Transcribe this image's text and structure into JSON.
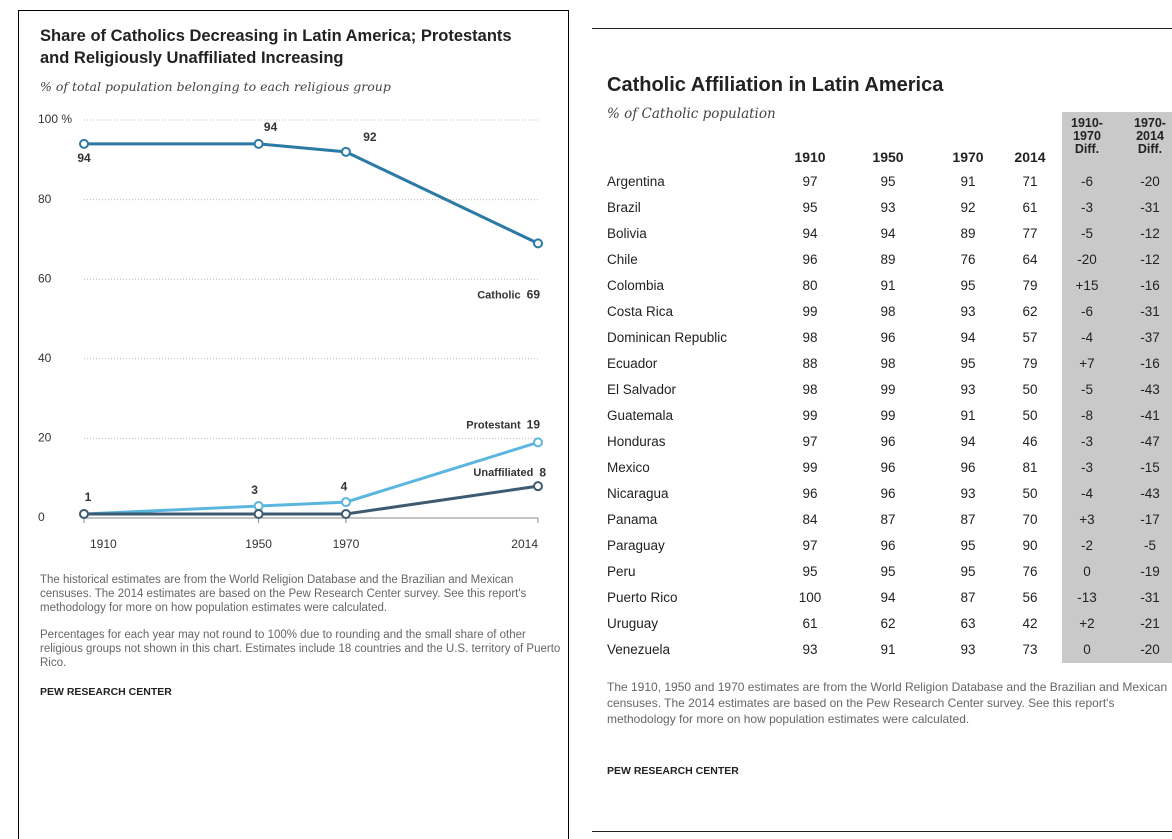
{
  "chart_data": {
    "type": "line",
    "title": "Share of Catholics Decreasing in Latin America; Protestants and Religiously Unaffiliated Increasing",
    "subtitle": "% of total population belonging to each religious group",
    "x": [
      1910,
      1950,
      1970,
      2014
    ],
    "series": [
      {
        "name": "Catholic",
        "color": "#2c7aa5",
        "values": [
          94,
          94,
          92,
          69
        ]
      },
      {
        "name": "Protestant",
        "color": "#5ab6df",
        "values": [
          1,
          3,
          4,
          19
        ]
      },
      {
        "name": "Unaffiliated",
        "color": "#3e5a70",
        "values": [
          1,
          1,
          1,
          8
        ]
      }
    ],
    "xlim": [
      1910,
      2014
    ],
    "xticks": [
      1910,
      1950,
      1970,
      2014
    ],
    "ylim": [
      0,
      100
    ],
    "yticks": [
      0,
      20,
      40,
      60,
      80,
      {
        "value": 100,
        "label": "100 %"
      }
    ],
    "grid": true,
    "notes": [
      "The historical estimates are from the World Religion Database and the Brazilian and Mexican censuses. The 2014 estimates are based on the Pew Research Center survey. See this report's methodology for more on how population estimates were calculated.",
      "Percentages for each year may not round to 100% due to rounding and the small share of other religious groups not shown in this chart. Estimates include 18 countries and the U.S. territory of Puerto Rico."
    ],
    "source": "PEW RESEARCH CENTER"
  },
  "table": {
    "title": "Catholic Affiliation in Latin America",
    "subtitle": "% of Catholic population",
    "columns": [
      "",
      "1910",
      "1950",
      "1970",
      "2014",
      "1910-1970 Diff.",
      "1970-2014 Diff."
    ],
    "rows": [
      [
        "Argentina",
        97,
        95,
        91,
        71,
        "-6",
        "-20"
      ],
      [
        "Brazil",
        95,
        93,
        92,
        61,
        "-3",
        "-31"
      ],
      [
        "Bolivia",
        94,
        94,
        89,
        77,
        "-5",
        "-12"
      ],
      [
        "Chile",
        96,
        89,
        76,
        64,
        "-20",
        "-12"
      ],
      [
        "Colombia",
        80,
        91,
        95,
        79,
        "+15",
        "-16"
      ],
      [
        "Costa Rica",
        99,
        98,
        93,
        62,
        "-6",
        "-31"
      ],
      [
        "Dominican Republic",
        98,
        96,
        94,
        57,
        "-4",
        "-37"
      ],
      [
        "Ecuador",
        88,
        98,
        95,
        79,
        "+7",
        "-16"
      ],
      [
        "El Salvador",
        98,
        99,
        93,
        50,
        "-5",
        "-43"
      ],
      [
        "Guatemala",
        99,
        99,
        91,
        50,
        "-8",
        "-41"
      ],
      [
        "Honduras",
        97,
        96,
        94,
        46,
        "-3",
        "-47"
      ],
      [
        "Mexico",
        99,
        96,
        96,
        81,
        "-3",
        "-15"
      ],
      [
        "Nicaragua",
        96,
        96,
        93,
        50,
        "-4",
        "-43"
      ],
      [
        "Panama",
        84,
        87,
        87,
        70,
        "+3",
        "-17"
      ],
      [
        "Paraguay",
        97,
        96,
        95,
        90,
        "-2",
        "-5"
      ],
      [
        "Peru",
        95,
        95,
        95,
        76,
        "0",
        "-19"
      ],
      [
        "Puerto Rico",
        100,
        94,
        87,
        56,
        "-13",
        "-31"
      ],
      [
        "Uruguay",
        61,
        62,
        63,
        42,
        "+2",
        "-21"
      ],
      [
        "Venezuela",
        93,
        91,
        93,
        73,
        "0",
        "-20"
      ]
    ],
    "note": "The 1910, 1950 and 1970 estimates are from the World Religion Database and the Brazilian and Mexican censuses. The 2014 estimates are based on the Pew Research Center survey. See this report's methodology for more on how population estimates were calculated.",
    "source": "PEW RESEARCH CENTER"
  }
}
